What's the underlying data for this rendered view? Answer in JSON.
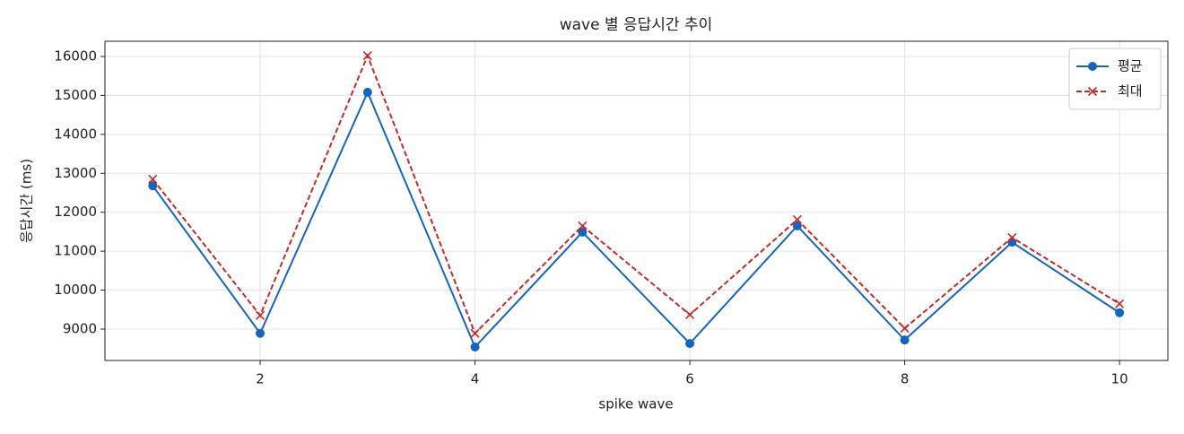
{
  "chart_data": {
    "type": "line",
    "title": "wave 별 응답시간 추이",
    "xlabel": "spike wave",
    "ylabel": "응답시간 (ms)",
    "x": [
      1,
      2,
      3,
      4,
      5,
      6,
      7,
      8,
      9,
      10
    ],
    "series": [
      {
        "name": "평균",
        "color": "#1565c0",
        "marker": "o",
        "linestyle": "solid",
        "values": [
          12680,
          8890,
          15080,
          8540,
          11490,
          8630,
          11650,
          8720,
          11230,
          9420
        ]
      },
      {
        "name": "최대",
        "color": "#c62828",
        "marker": "x",
        "linestyle": "dashed",
        "values": [
          12850,
          9350,
          16020,
          8890,
          11650,
          9370,
          11810,
          9020,
          11350,
          9650
        ]
      }
    ],
    "xlim": [
      0.555,
      10.45
    ],
    "ylim": [
      8194,
      16391
    ],
    "xticks": [
      2,
      4,
      6,
      8,
      10
    ],
    "yticks": [
      9000,
      10000,
      11000,
      12000,
      13000,
      14000,
      15000,
      16000
    ],
    "grid": true,
    "legend": "upper right"
  }
}
